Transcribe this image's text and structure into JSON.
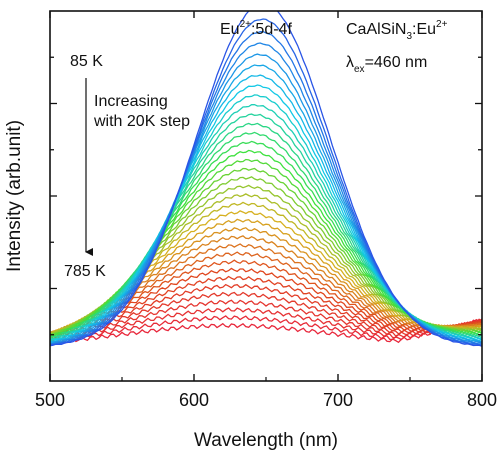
{
  "chart_data": {
    "type": "line",
    "title": "",
    "xlabel": "Wavelength (nm)",
    "ylabel": "Intensity (arb.unit)",
    "xlim": [
      500,
      800
    ],
    "ylim": [
      0,
      1.0
    ],
    "x_ticks": [
      500,
      600,
      700,
      800
    ],
    "x_tick_labels": [
      "500",
      "600",
      "700",
      "800"
    ],
    "y_tick_labels": [],
    "grid": false,
    "legend": "none",
    "series_count": 36,
    "temperature_range": [
      85,
      785
    ],
    "temperature_step": 20,
    "series_color_ramp": [
      "#2a55e6",
      "#12c8e6",
      "#3ee13e",
      "#d6b020",
      "#e0461e",
      "#e8283c"
    ],
    "peak_wavelength": {
      "first": 648,
      "last": 625
    },
    "peak_intensity": {
      "first": 0.93,
      "last": 0.06
    },
    "peak_width_fwhm": {
      "first": 110,
      "last": 175
    },
    "baseline_intensity": 0.09,
    "annotations": {
      "band_prefix": "Eu",
      "band_sup": "2+",
      "band_suffix": ":5d-4f",
      "compound_prefix": "CaAlSiN",
      "compound_sub": "3",
      "compound_mid": ":Eu",
      "compound_sup": "2+",
      "lambda_symbol": "λ",
      "lambda_sub": "ex",
      "lambda_value": "=460 nm",
      "temp_start": "85 K",
      "temp_end": "785 K",
      "increase_line1": "Increasing",
      "increase_line2": "with 20K step"
    }
  }
}
